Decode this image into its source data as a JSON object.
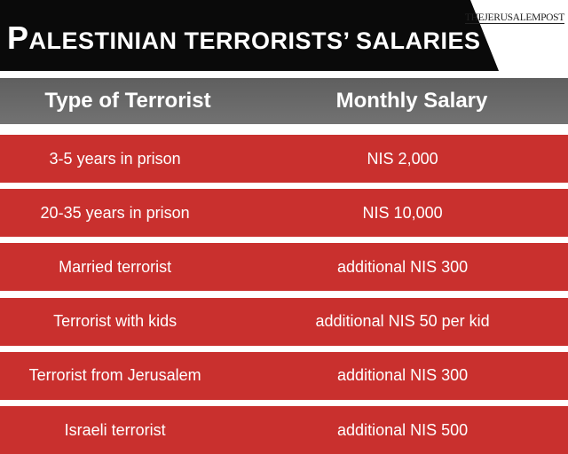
{
  "header": {
    "title": "PALESTINIAN TERRORISTS’ SALARIES",
    "logo": "THEJERUSALEMPOST"
  },
  "table": {
    "columns": [
      "Type of Terrorist",
      "Monthly Salary"
    ],
    "rows": [
      [
        "3-5 years in prison",
        "NIS 2,000"
      ],
      [
        "20-35 years in prison",
        "NIS 10,000"
      ],
      [
        "Married terrorist",
        "additional NIS 300"
      ],
      [
        "Terrorist with kids",
        "additional NIS 50 per kid"
      ],
      [
        "Terrorist from Jerusalem",
        "additional NIS 300"
      ],
      [
        "Israeli terrorist",
        "additional NIS 500"
      ]
    ]
  }
}
